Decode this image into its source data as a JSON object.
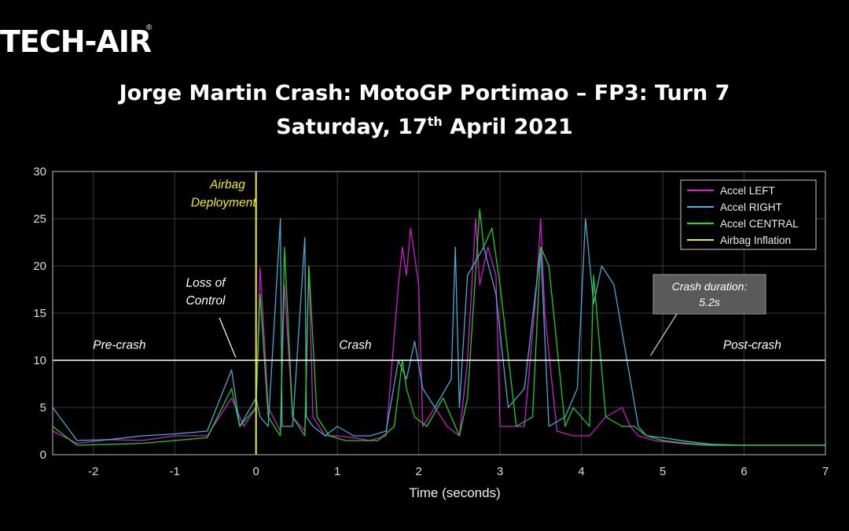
{
  "logo": {
    "text": "TECH-AIR",
    "reg": "®"
  },
  "chart_data": {
    "type": "line",
    "title": "Jorge Martin Crash: MotoGP Portimao – FP3: Turn 7",
    "subtitle_main": "Saturday, 17",
    "subtitle_sup": "th",
    "subtitle_end": " April 2021",
    "xlabel": "Time (seconds)",
    "ylabel": "",
    "xlim": [
      -2.5,
      7
    ],
    "ylim": [
      0,
      30
    ],
    "xticks": [
      -2,
      -1,
      0,
      1,
      2,
      3,
      4,
      5,
      6,
      7
    ],
    "yticks": [
      0,
      5,
      10,
      15,
      20,
      25,
      30
    ],
    "grid": true,
    "legend_position": "top-right",
    "colors": {
      "left": "#e01ee0",
      "right": "#4fb6e6",
      "central": "#22e022",
      "airbag": "#f2ea2a",
      "annotation": "#ffffff",
      "grid": "#3a3a3a"
    },
    "series": [
      {
        "name": "Accel LEFT",
        "key": "left",
        "x": [
          -2.5,
          -2.2,
          -1.8,
          -1.4,
          -1,
          -0.6,
          -0.3,
          -0.15,
          0,
          0.05,
          0.15,
          0.3,
          0.35,
          0.45,
          0.6,
          0.65,
          0.7,
          0.85,
          1.0,
          1.2,
          1.4,
          1.6,
          1.75,
          1.8,
          1.85,
          1.9,
          1.95,
          2.0,
          2.05,
          2.2,
          2.35,
          2.5,
          2.6,
          2.7,
          2.75,
          2.85,
          2.95,
          3.0,
          3.1,
          3.3,
          3.45,
          3.5,
          3.55,
          3.7,
          3.9,
          4.1,
          4.3,
          4.5,
          4.6,
          4.7,
          4.9,
          5.2,
          5.5,
          6,
          7
        ],
        "y": [
          2.5,
          1.2,
          1.6,
          1.5,
          2,
          2,
          6,
          3,
          5,
          19.8,
          5,
          2.5,
          18,
          4,
          2.5,
          20,
          4,
          2,
          2,
          1.8,
          1.5,
          2,
          18,
          22,
          19,
          24,
          21,
          18,
          3,
          5,
          3,
          2,
          10,
          25,
          18,
          22,
          19,
          3,
          3,
          3,
          18,
          25,
          15,
          2.5,
          2,
          2,
          4,
          5,
          3,
          2,
          1.5,
          1.2,
          1,
          1,
          1
        ]
      },
      {
        "name": "Accel RIGHT",
        "key": "right",
        "x": [
          -2.5,
          -2.2,
          -1.8,
          -1.4,
          -1,
          -0.6,
          -0.3,
          -0.2,
          0,
          0.05,
          0.15,
          0.3,
          0.32,
          0.45,
          0.6,
          0.62,
          0.7,
          0.85,
          1.0,
          1.2,
          1.4,
          1.6,
          1.75,
          1.85,
          1.95,
          2.05,
          2.2,
          2.4,
          2.45,
          2.5,
          2.6,
          2.8,
          2.95,
          3.1,
          3.3,
          3.5,
          3.6,
          3.8,
          3.95,
          4.05,
          4.15,
          4.25,
          4.4,
          4.6,
          4.7,
          4.8,
          5.0,
          5.3,
          5.6,
          6,
          7
        ],
        "y": [
          5,
          1.5,
          1.6,
          2,
          2.2,
          2.5,
          9,
          3,
          6,
          4,
          3,
          25,
          3,
          3,
          23,
          4,
          3,
          2,
          3,
          2,
          2,
          2.5,
          10,
          8,
          12,
          7,
          5,
          8,
          22,
          5,
          19,
          22,
          17,
          5,
          7,
          22,
          3,
          4,
          7,
          25,
          16,
          20,
          18,
          8,
          3,
          2,
          1.8,
          1.4,
          1.1,
          1,
          1
        ]
      },
      {
        "name": "Accel CENTRAL",
        "key": "central",
        "x": [
          -2.5,
          -2.2,
          -1.8,
          -1.4,
          -1,
          -0.6,
          -0.3,
          -0.2,
          0,
          0.05,
          0.15,
          0.3,
          0.35,
          0.45,
          0.6,
          0.65,
          0.75,
          0.9,
          1.1,
          1.3,
          1.5,
          1.7,
          1.8,
          1.85,
          1.95,
          2.1,
          2.3,
          2.5,
          2.6,
          2.75,
          2.8,
          2.9,
          3.0,
          3.2,
          3.4,
          3.5,
          3.6,
          3.8,
          3.9,
          4.1,
          4.15,
          4.3,
          4.5,
          4.65,
          4.8,
          5.0,
          5.3,
          5.6,
          6,
          7
        ],
        "y": [
          3,
          1,
          1.1,
          1.2,
          1.5,
          1.8,
          7,
          3,
          5,
          17,
          4,
          2,
          22,
          4,
          2,
          20,
          4,
          2,
          1.5,
          1.5,
          1.5,
          3,
          10,
          7,
          4,
          3,
          6,
          2,
          6,
          26,
          22,
          24,
          18,
          3,
          4,
          22,
          20,
          3,
          5,
          3,
          19,
          4,
          3,
          3,
          2,
          1.5,
          1.2,
          1,
          1,
          1
        ]
      },
      {
        "name": "Airbag Inflation",
        "key": "airbag",
        "x": [
          0,
          0
        ],
        "y": [
          0,
          30
        ]
      }
    ],
    "annotations": [
      {
        "text": "Airbag",
        "x": -0.35,
        "y": 28.2
      },
      {
        "text": "Deployment",
        "x": -0.4,
        "y": 26.3
      },
      {
        "text": "Loss of",
        "x": -0.62,
        "y": 17.8
      },
      {
        "text": "Control",
        "x": -0.62,
        "y": 15.9
      },
      {
        "text": "Pre-crash",
        "x": -1.68,
        "y": 11.2
      },
      {
        "text": "Crash",
        "x": 1.22,
        "y": 11.2
      },
      {
        "text": "Post-crash",
        "x": 6.1,
        "y": 11.2
      }
    ],
    "callout": {
      "line1": "Crash duration:",
      "line2": "5.2s"
    }
  }
}
